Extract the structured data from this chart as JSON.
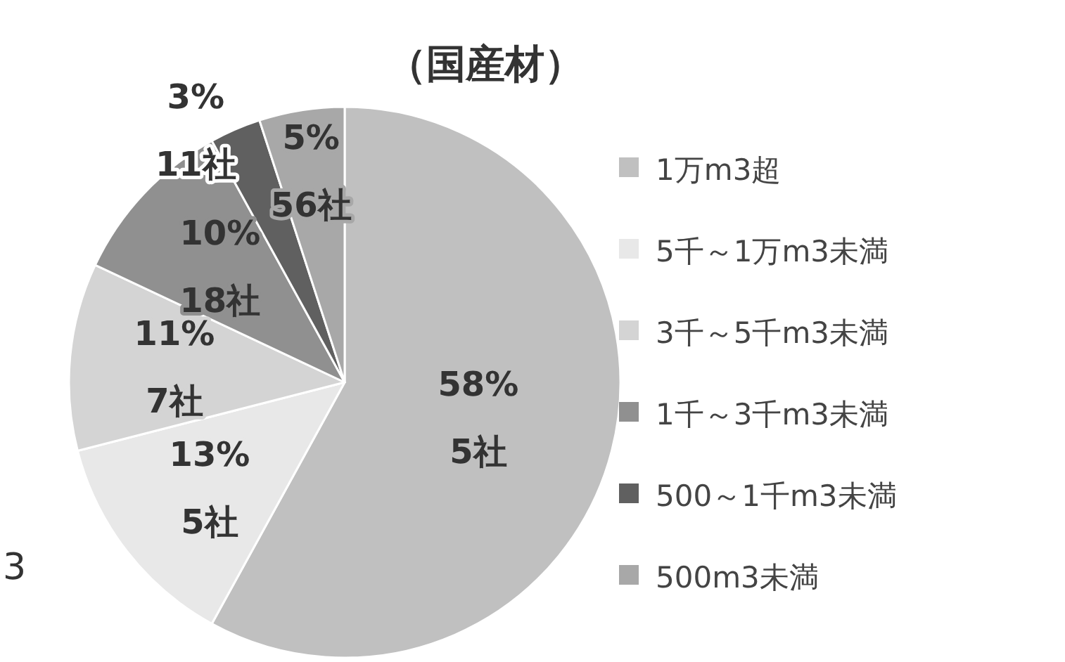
{
  "chart_data": {
    "type": "pie",
    "title": "（国産材）",
    "categories": [
      "1万m3超",
      "5千～1万m3未満",
      "3千～5千m3未満",
      "1千～3千m3未満",
      "500～1千m3未満",
      "500m3未満"
    ],
    "values": [
      58,
      13,
      11,
      10,
      3,
      5
    ],
    "value_labels": [
      "58%\n5社",
      "13%\n5社",
      "11%\n7社",
      "10%\n18社",
      "3%\n11社",
      "5%\n56社"
    ],
    "colors": [
      "#c0c0c0",
      "#e8e8e8",
      "#d4d4d4",
      "#909090",
      "#606060",
      "#a8a8a8"
    ],
    "legend": "right",
    "annotations": [
      "3"
    ]
  }
}
